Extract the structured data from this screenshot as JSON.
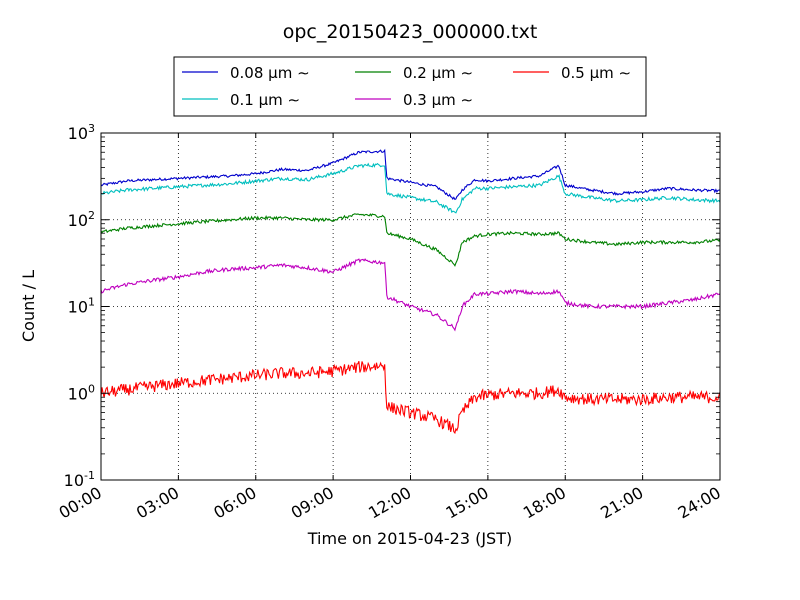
{
  "chart_data": {
    "type": "line",
    "title": "opc_20150423_000000.txt",
    "xlabel": "Time on 2015-04-23 (JST)",
    "ylabel": "Count / L",
    "y_scale": "log",
    "ylim": [
      0.1,
      1000
    ],
    "xlim": [
      "00:00",
      "24:00"
    ],
    "x_ticks": [
      "00:00",
      "03:00",
      "06:00",
      "09:00",
      "12:00",
      "15:00",
      "18:00",
      "21:00",
      "24:00"
    ],
    "y_ticks": [
      {
        "value": 0.1,
        "base": "10",
        "exp": "-1"
      },
      {
        "value": 1,
        "base": "10",
        "exp": "0"
      },
      {
        "value": 10,
        "base": "10",
        "exp": "1"
      },
      {
        "value": 100,
        "base": "10",
        "exp": "2"
      },
      {
        "value": 1000,
        "base": "10",
        "exp": "3"
      }
    ],
    "grid": true,
    "legend_placement": "top-center",
    "x": [
      "00:00",
      "01:00",
      "02:00",
      "03:00",
      "04:00",
      "05:00",
      "06:00",
      "07:00",
      "08:00",
      "09:00",
      "10:00",
      "11:00",
      "11:05",
      "12:00",
      "13:00",
      "13:45",
      "14:00",
      "14:30",
      "15:00",
      "16:00",
      "17:00",
      "17:45",
      "18:00",
      "19:00",
      "20:00",
      "21:00",
      "22:00",
      "23:00",
      "24:00"
    ],
    "series": [
      {
        "name": "0.08 μm ∼",
        "color": "#0000cc",
        "values": [
          250,
          280,
          290,
          300,
          310,
          320,
          340,
          380,
          370,
          450,
          600,
          620,
          300,
          270,
          240,
          170,
          220,
          290,
          280,
          300,
          320,
          420,
          250,
          220,
          200,
          210,
          230,
          220,
          215
        ]
      },
      {
        "name": "0.1 μm ∼",
        "color": "#00bfbf",
        "values": [
          200,
          220,
          230,
          240,
          250,
          260,
          280,
          300,
          290,
          340,
          420,
          430,
          200,
          180,
          160,
          120,
          170,
          230,
          230,
          240,
          250,
          320,
          200,
          180,
          165,
          170,
          180,
          170,
          165
        ]
      },
      {
        "name": "0.2 μm ∼",
        "color": "#008000",
        "values": [
          72,
          80,
          85,
          90,
          95,
          100,
          105,
          105,
          100,
          100,
          115,
          110,
          70,
          60,
          45,
          30,
          55,
          65,
          68,
          70,
          68,
          70,
          60,
          55,
          52,
          55,
          55,
          55,
          58
        ]
      },
      {
        "name": "0.3 μm ∼",
        "color": "#bf00bf",
        "values": [
          15,
          18,
          20,
          22,
          25,
          27,
          28,
          30,
          28,
          25,
          34,
          32,
          13,
          10,
          8,
          5.5,
          10,
          14,
          14,
          15,
          14,
          15,
          11,
          10,
          10,
          10,
          11,
          12,
          14
        ]
      },
      {
        "name": "0.5 μm ∼",
        "color": "#ff0000",
        "values": [
          1.0,
          1.1,
          1.2,
          1.3,
          1.4,
          1.5,
          1.6,
          1.7,
          1.7,
          1.8,
          2.0,
          2.1,
          0.7,
          0.6,
          0.5,
          0.38,
          0.6,
          0.9,
          0.95,
          1.0,
          1.0,
          1.1,
          0.9,
          0.85,
          0.85,
          0.85,
          0.9,
          0.9,
          0.9
        ]
      }
    ]
  }
}
